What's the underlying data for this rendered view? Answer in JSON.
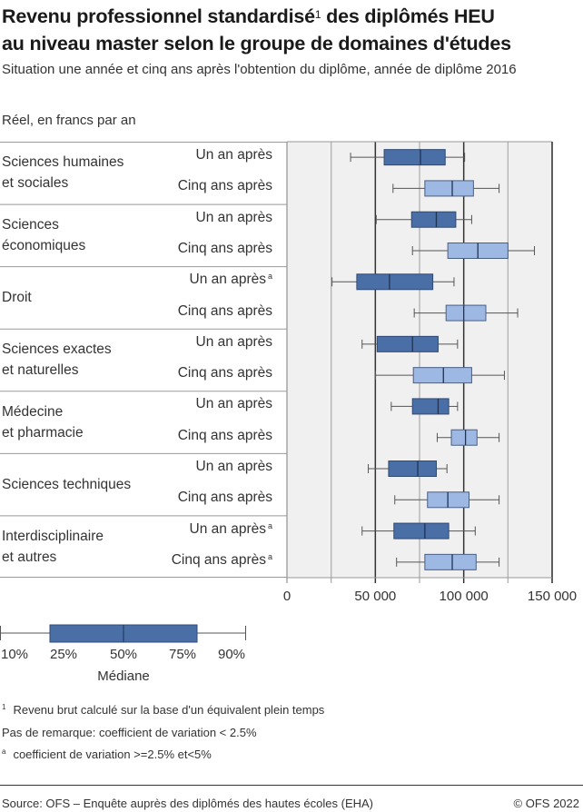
{
  "title": {
    "line1": "Revenu professionnel standardisé",
    "sup": "1",
    "line1_rest": " des diplômés HEU",
    "line2": "au niveau master selon le groupe de domaines d'études"
  },
  "subtitle": "Situation une année et cinq ans après l'obtention du diplôme, année de diplôme 2016",
  "unit_label": "Réel, en francs par an",
  "colors": {
    "one_year": "#4a6ea6",
    "five_years": "#9db8e3",
    "plot_bg": "#f0f0f0"
  },
  "chart_data": {
    "type": "boxplot",
    "orientation": "horizontal",
    "xlim": [
      0,
      150000
    ],
    "ticks": [
      {
        "value": 0,
        "label": "0"
      },
      {
        "value": 50000,
        "label": "50 000"
      },
      {
        "value": 100000,
        "label": "100 000"
      },
      {
        "value": 150000,
        "label": "150 000"
      }
    ],
    "minor_gridlines": [
      25000,
      75000,
      125000
    ],
    "stats_order": [
      "p10",
      "p25",
      "median",
      "p75",
      "p90"
    ],
    "groups": [
      {
        "label": [
          "Sciences humaines",
          "et sociales"
        ],
        "rows": [
          {
            "label": "Un an après",
            "note": "",
            "stats": [
              36000,
              55000,
              75500,
              89500,
              100500
            ]
          },
          {
            "label": "Cinq ans après",
            "note": "",
            "stats": [
              60000,
              78000,
              93500,
              105500,
              120000
            ]
          }
        ]
      },
      {
        "label": [
          "Sciences",
          "économiques"
        ],
        "rows": [
          {
            "label": "Un an après",
            "note": "",
            "stats": [
              50500,
              70500,
              84500,
              95500,
              104500
            ]
          },
          {
            "label": "Cinq ans après",
            "note": "",
            "stats": [
              71000,
              91000,
              108000,
              125000,
              140000
            ]
          }
        ]
      },
      {
        "label": [
          "Droit"
        ],
        "rows": [
          {
            "label": "Un an après",
            "note": "a",
            "stats": [
              25500,
              39500,
              58000,
              82500,
              94500
            ]
          },
          {
            "label": "Cinq ans après",
            "note": "",
            "stats": [
              72000,
              90000,
              100000,
              112500,
              130500
            ]
          }
        ]
      },
      {
        "label": [
          "Sciences exactes",
          "et naturelles"
        ],
        "rows": [
          {
            "label": "Un an après",
            "note": "",
            "stats": [
              42500,
              51000,
              71000,
              85500,
              96500
            ]
          },
          {
            "label": "Cinq ans après",
            "note": "",
            "stats": [
              50000,
              71500,
              88500,
              104500,
              123000
            ]
          }
        ]
      },
      {
        "label": [
          "Médecine",
          "et pharmacie"
        ],
        "rows": [
          {
            "label": "Un an après",
            "note": "",
            "stats": [
              59000,
              71000,
              85500,
              91500,
              96500
            ]
          },
          {
            "label": "Cinq ans après",
            "note": "",
            "stats": [
              85000,
              93000,
              101000,
              107500,
              120000
            ]
          }
        ]
      },
      {
        "label": [
          "Sciences techniques"
        ],
        "rows": [
          {
            "label": "Un an après",
            "note": "",
            "stats": [
              46000,
              57500,
              74000,
              84500,
              90500
            ]
          },
          {
            "label": "Cinq ans après",
            "note": "",
            "stats": [
              61000,
              79500,
              91000,
              103000,
              120000
            ]
          }
        ]
      },
      {
        "label": [
          "Interdisciplinaire",
          "et autres"
        ],
        "rows": [
          {
            "label": "Un an après",
            "note": "a",
            "stats": [
              42500,
              60500,
              78000,
              91500,
              106500
            ]
          },
          {
            "label": "Cinq ans après",
            "note": "a",
            "stats": [
              62000,
              78000,
              93500,
              107000,
              120000
            ]
          }
        ]
      }
    ]
  },
  "legend": {
    "p10": "10%",
    "p25": "25%",
    "p50": "50%",
    "p75": "75%",
    "p90": "90%",
    "median": "Médiane"
  },
  "footnotes": {
    "n1_mark": "1",
    "n1": "Revenu brut calculé sur la base d'un équivalent plein temps",
    "no_mark": "Pas de remarque: coefficient de variation < 2.5%",
    "a_mark": "a",
    "a": "coefficient de variation >=2.5% et<5%"
  },
  "source": "Source: OFS – Enquête auprès des diplômés des hautes écoles (EHA)",
  "copyright": "© OFS 2022"
}
